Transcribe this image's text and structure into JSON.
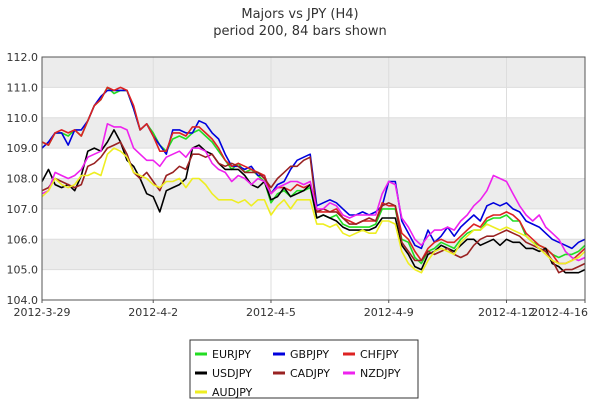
{
  "chart_data": {
    "type": "line",
    "title": "Majors vs JPY (H4)",
    "subtitle": "period 200, 84 bars shown",
    "xlabel": "",
    "ylabel": "",
    "ylim": [
      104.0,
      112.0
    ],
    "yticks": [
      "104.0",
      "105.0",
      "106.0",
      "107.0",
      "108.0",
      "109.0",
      "110.0",
      "111.0",
      "112.0"
    ],
    "x_count": 84,
    "xticks": [
      {
        "index": 0,
        "label": "2012-3-29"
      },
      {
        "index": 17,
        "label": "2012-4-2"
      },
      {
        "index": 35,
        "label": "2012-4-5"
      },
      {
        "index": 53,
        "label": "2012-4-9"
      },
      {
        "index": 71,
        "label": "2012-4-12"
      },
      {
        "index": 83,
        "label": "2012-4-16"
      }
    ],
    "grid": true,
    "legend_position": "bottom",
    "series": [
      {
        "name": "EURJPY",
        "color": "#22dd22",
        "values": [
          109.2,
          109.1,
          109.5,
          109.5,
          109.4,
          109.6,
          109.4,
          109.9,
          110.4,
          110.6,
          111.0,
          110.8,
          110.9,
          110.9,
          110.3,
          109.6,
          109.8,
          109.5,
          109.1,
          108.9,
          109.3,
          109.4,
          109.3,
          109.5,
          109.6,
          109.4,
          109.2,
          108.9,
          108.6,
          108.3,
          108.5,
          108.2,
          108.3,
          108.1,
          107.9,
          107.2,
          107.5,
          107.6,
          107.4,
          107.6,
          107.6,
          107.7,
          106.7,
          106.8,
          106.7,
          106.8,
          106.5,
          106.4,
          106.4,
          106.4,
          106.4,
          106.5,
          107.0,
          107.0,
          107.0,
          106.0,
          105.9,
          105.4,
          105.2,
          105.6,
          105.7,
          105.9,
          105.8,
          105.7,
          106.0,
          106.2,
          106.3,
          106.3,
          106.6,
          106.7,
          106.7,
          106.8,
          106.6,
          106.6,
          106.1,
          105.9,
          105.8,
          105.7,
          105.5,
          105.4,
          105.5,
          105.5,
          105.6,
          105.8
        ]
      },
      {
        "name": "GBPJPY",
        "color": "#0000dd",
        "values": [
          109.0,
          109.2,
          109.5,
          109.5,
          109.1,
          109.6,
          109.6,
          109.9,
          110.4,
          110.7,
          110.9,
          110.9,
          110.9,
          110.9,
          110.3,
          109.6,
          109.8,
          109.4,
          109.1,
          108.8,
          109.6,
          109.6,
          109.5,
          109.5,
          109.9,
          109.8,
          109.5,
          109.3,
          108.8,
          108.4,
          108.4,
          108.3,
          108.4,
          108.1,
          108.1,
          107.5,
          107.8,
          107.9,
          108.3,
          108.6,
          108.7,
          108.8,
          107.1,
          107.2,
          107.3,
          107.2,
          107.0,
          106.8,
          106.8,
          106.9,
          106.8,
          106.9,
          107.1,
          107.9,
          107.9,
          106.6,
          106.2,
          105.8,
          105.7,
          106.3,
          105.9,
          106.1,
          106.4,
          106.1,
          106.4,
          106.6,
          106.8,
          106.6,
          107.1,
          107.2,
          107.1,
          107.2,
          107.0,
          106.9,
          106.6,
          106.5,
          106.4,
          106.2,
          106.0,
          105.9,
          105.8,
          105.7,
          105.9,
          106.0
        ]
      },
      {
        "name": "CHFJPY",
        "color": "#dd2222",
        "values": [
          109.2,
          109.1,
          109.5,
          109.6,
          109.5,
          109.6,
          109.4,
          109.9,
          110.4,
          110.6,
          111.0,
          110.9,
          111.0,
          110.9,
          110.4,
          109.6,
          109.8,
          109.4,
          108.9,
          108.9,
          109.5,
          109.5,
          109.4,
          109.7,
          109.7,
          109.5,
          109.3,
          109.0,
          108.6,
          108.4,
          108.5,
          108.4,
          108.3,
          108.2,
          108.1,
          107.5,
          107.7,
          107.7,
          107.6,
          107.8,
          107.7,
          107.8,
          106.9,
          106.9,
          106.9,
          107.0,
          106.7,
          106.6,
          106.5,
          106.6,
          106.6,
          106.6,
          107.2,
          107.1,
          107.1,
          106.2,
          106.0,
          105.6,
          105.3,
          105.7,
          105.9,
          106.0,
          105.9,
          105.9,
          106.1,
          106.3,
          106.5,
          106.4,
          106.7,
          106.8,
          106.8,
          106.9,
          106.8,
          106.6,
          106.2,
          106.0,
          105.8,
          105.7,
          105.5,
          105.2,
          105.2,
          105.3,
          105.5,
          105.7
        ]
      },
      {
        "name": "USDJPY",
        "color": "#000000",
        "values": [
          107.9,
          108.3,
          107.8,
          107.7,
          107.8,
          107.6,
          108.1,
          108.9,
          109.0,
          108.9,
          109.2,
          109.6,
          109.2,
          108.6,
          108.4,
          108.0,
          107.5,
          107.4,
          106.9,
          107.6,
          107.7,
          107.8,
          108.0,
          109.0,
          109.1,
          108.9,
          108.8,
          108.5,
          108.3,
          108.3,
          108.3,
          108.1,
          107.8,
          107.7,
          107.9,
          107.3,
          107.4,
          107.7,
          107.4,
          107.5,
          107.6,
          107.8,
          106.7,
          106.8,
          106.7,
          106.6,
          106.4,
          106.3,
          106.3,
          106.3,
          106.3,
          106.4,
          106.7,
          106.7,
          106.7,
          105.8,
          105.5,
          105.1,
          105.0,
          105.5,
          105.6,
          105.8,
          105.7,
          105.6,
          105.8,
          106.0,
          106.0,
          105.8,
          105.9,
          106.0,
          105.8,
          106.0,
          105.9,
          105.9,
          105.7,
          105.7,
          105.6,
          105.7,
          105.2,
          105.1,
          104.9,
          104.9,
          104.9,
          105.0
        ]
      },
      {
        "name": "CADJPY",
        "color": "#992222",
        "values": [
          107.6,
          107.7,
          108.0,
          107.9,
          107.8,
          107.7,
          107.8,
          108.4,
          108.5,
          108.7,
          109.0,
          109.1,
          109.2,
          108.8,
          108.2,
          108.0,
          108.2,
          107.9,
          107.6,
          108.1,
          108.2,
          108.4,
          108.3,
          108.8,
          108.8,
          108.7,
          108.8,
          108.5,
          108.4,
          108.5,
          108.4,
          108.2,
          108.2,
          108.2,
          108.0,
          107.7,
          108.0,
          108.2,
          108.4,
          108.4,
          108.6,
          108.7,
          106.9,
          107.0,
          106.9,
          106.9,
          106.7,
          106.5,
          106.5,
          106.6,
          106.7,
          106.6,
          107.1,
          107.2,
          107.1,
          105.9,
          105.6,
          105.3,
          105.3,
          105.6,
          105.5,
          105.6,
          105.7,
          105.5,
          105.4,
          105.5,
          105.8,
          106.0,
          106.1,
          106.1,
          106.2,
          106.3,
          106.2,
          106.1,
          105.9,
          105.8,
          105.7,
          105.6,
          105.3,
          104.9,
          105.0,
          105.0,
          105.1,
          105.2
        ]
      },
      {
        "name": "NZDJPY",
        "color": "#ee22ee",
        "values": [
          107.5,
          107.6,
          108.2,
          108.1,
          108.0,
          108.1,
          108.3,
          108.7,
          108.8,
          108.9,
          109.8,
          109.7,
          109.7,
          109.6,
          109.0,
          108.8,
          108.6,
          108.6,
          108.4,
          108.7,
          108.8,
          108.9,
          108.7,
          109.0,
          109.0,
          108.9,
          108.5,
          108.3,
          108.2,
          107.9,
          108.1,
          108.0,
          107.8,
          108.0,
          107.9,
          107.5,
          107.7,
          107.8,
          107.9,
          107.9,
          107.8,
          107.9,
          107.0,
          107.0,
          107.2,
          107.1,
          106.8,
          106.7,
          106.8,
          106.8,
          106.8,
          106.8,
          107.5,
          107.9,
          107.8,
          106.7,
          106.4,
          106.0,
          105.8,
          106.1,
          106.3,
          106.3,
          106.4,
          106.3,
          106.6,
          106.8,
          107.1,
          107.3,
          107.6,
          108.1,
          108.0,
          107.9,
          107.5,
          107.1,
          106.8,
          106.6,
          106.8,
          106.4,
          106.2,
          106.0,
          105.6,
          105.4,
          105.3,
          105.4
        ]
      },
      {
        "name": "AUDJPY",
        "color": "#eeee22",
        "values": [
          107.4,
          107.6,
          108.0,
          107.8,
          107.7,
          107.8,
          108.1,
          108.1,
          108.2,
          108.1,
          108.8,
          109.0,
          108.9,
          108.7,
          108.2,
          108.1,
          108.0,
          107.8,
          107.7,
          107.9,
          107.9,
          108.0,
          107.7,
          108.0,
          108.0,
          107.8,
          107.5,
          107.3,
          107.3,
          107.3,
          107.2,
          107.3,
          107.1,
          107.3,
          107.3,
          106.8,
          107.1,
          107.3,
          107.0,
          107.3,
          107.3,
          107.3,
          106.5,
          106.5,
          106.4,
          106.5,
          106.2,
          106.1,
          106.2,
          106.3,
          106.2,
          106.2,
          106.6,
          106.6,
          106.5,
          105.6,
          105.2,
          105.0,
          104.9,
          105.3,
          105.6,
          105.7,
          105.6,
          105.5,
          105.9,
          106.1,
          106.3,
          106.3,
          106.5,
          106.4,
          106.3,
          106.4,
          106.3,
          106.2,
          106.1,
          105.9,
          105.7,
          105.5,
          105.3,
          105.2,
          105.2,
          105.3,
          105.4,
          105.6
        ]
      }
    ]
  }
}
